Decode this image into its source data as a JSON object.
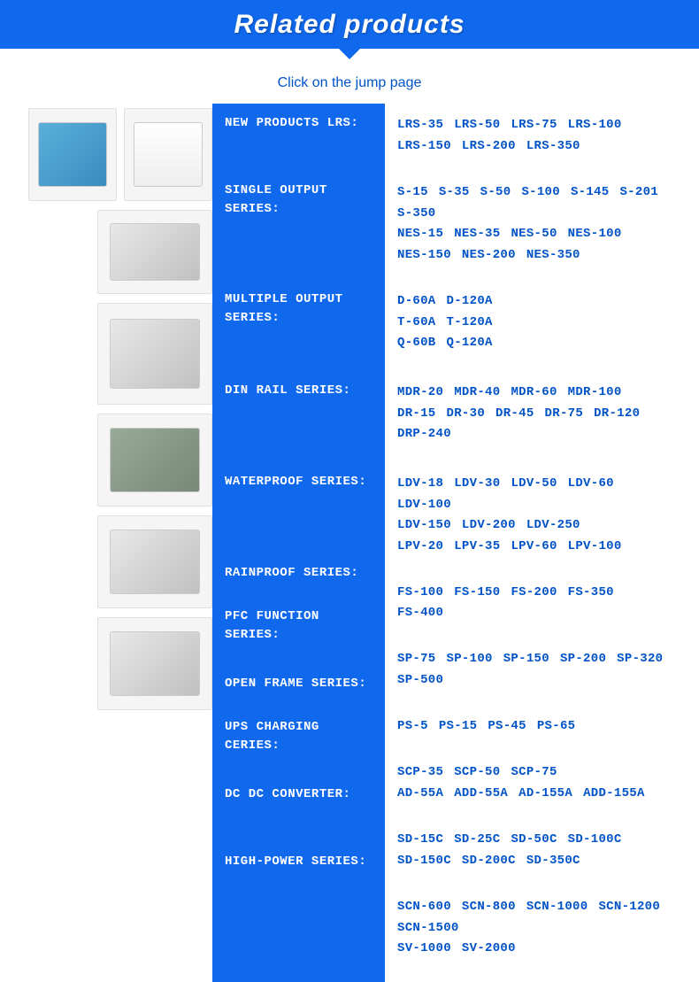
{
  "header": {
    "title": "Related products"
  },
  "subtitle": "Click on the jump page",
  "colors": {
    "primary": "#1068ed",
    "link": "#0052c7",
    "white": "#ffffff",
    "bg": "#ffffff"
  },
  "typography": {
    "title_size": 30,
    "subtitle_size": 16,
    "category_font": "Courier New",
    "category_size": 14,
    "link_size": 14
  },
  "categories": [
    {
      "id": "lrs",
      "label": "NEW PRODUCTS LRS:",
      "height_class": "cat-h-sm",
      "products": [
        [
          "LRS-35",
          "LRS-50",
          "LRS-75",
          "LRS-100"
        ],
        [
          "LRS-150",
          "LRS-200",
          "LRS-350"
        ]
      ]
    },
    {
      "id": "single",
      "label": "SINGLE OUTPUT SERIES:",
      "height_class": "cat-h-lg",
      "products": [
        [
          "S-15",
          "S-35",
          "S-50",
          "S-100",
          "S-145",
          "S-201"
        ],
        [
          "S-350"
        ],
        [
          "NES-15",
          "NES-35",
          "NES-50",
          "NES-100"
        ],
        [
          "NES-150",
          "NES-200",
          "NES-350"
        ]
      ]
    },
    {
      "id": "multiple",
      "label": "MULTIPLE OUTPUT SERIES:",
      "height_class": "cat-h-md",
      "products": [
        [
          "D-60A",
          "D-120A"
        ],
        [
          "T-60A",
          "T-120A"
        ],
        [
          "Q-60B",
          "Q-120A"
        ]
      ]
    },
    {
      "id": "dinrail",
      "label": "DIN RAIL SERIES:",
      "height_class": "cat-h-md",
      "products": [
        [
          "MDR-20",
          "MDR-40",
          "MDR-60",
          "MDR-100"
        ],
        [
          "DR-15",
          "DR-30",
          "DR-45",
          "DR-75",
          "DR-120"
        ],
        [
          "DRP-240"
        ]
      ]
    },
    {
      "id": "waterproof",
      "label": "WATERPROOF SERIES:",
      "height_class": "cat-h-md",
      "products": [
        [
          "LDV-18",
          "LDV-30",
          "LDV-50",
          "LDV-60",
          "LDV-100"
        ],
        [
          "LDV-150",
          "LDV-200",
          "LDV-250"
        ],
        [
          "LPV-20",
          "LPV-35",
          "LPV-60",
          "LPV-100"
        ]
      ]
    },
    {
      "id": "rainproof",
      "label": "RAINPROOF SERIES:",
      "height_class": "",
      "products": [
        [
          "FS-100",
          "FS-150",
          "FS-200",
          "FS-350",
          "FS-400"
        ]
      ]
    },
    {
      "id": "pfc",
      "label": "PFC FUNCTION SERIES:",
      "height_class": "cat-h-sm",
      "products": [
        [
          "SP-75",
          "SP-100",
          "SP-150",
          "SP-200",
          "SP-320"
        ],
        [
          "SP-500"
        ]
      ]
    },
    {
      "id": "openframe",
      "label": "OPEN FRAME SERIES:",
      "height_class": "",
      "products": [
        [
          "PS-5",
          "PS-15",
          "PS-45",
          "PS-65"
        ]
      ]
    },
    {
      "id": "ups",
      "label": "UPS CHARGING CERIES:",
      "height_class": "cat-h-sm",
      "products": [
        [
          "SCP-35",
          "SCP-50",
          "SCP-75"
        ],
        [
          "AD-55A",
          "ADD-55A",
          "AD-155A",
          "ADD-155A"
        ]
      ]
    },
    {
      "id": "dcdc",
      "label": "DC DC CONVERTER:",
      "height_class": "cat-h-sm",
      "products": [
        [
          "SD-15C",
          "SD-25C",
          "SD-50C",
          "SD-100C"
        ],
        [
          "SD-150C",
          "SD-200C",
          "SD-350C"
        ]
      ]
    },
    {
      "id": "highpower",
      "label": "HIGH-POWER SERIES:",
      "height_class": "cat-h-md",
      "products": [
        [
          "SCN-600",
          "SCN-800",
          "SCN-1000",
          "SCN-1200"
        ],
        [
          "SCN-1500"
        ],
        [
          "SV-1000",
          "SV-2000"
        ]
      ]
    }
  ],
  "thumbnails": [
    {
      "type": "row",
      "items": [
        {
          "style": "box-blue"
        },
        {
          "style": "box-white"
        }
      ]
    },
    {
      "type": "single",
      "size": "img-lg",
      "style": "box-silver"
    },
    {
      "type": "single",
      "size": "img-tall",
      "style": "box-silver"
    },
    {
      "type": "single",
      "size": "img-med",
      "style": "box-open"
    },
    {
      "type": "single",
      "size": "img-med",
      "style": "box-silver"
    },
    {
      "type": "single",
      "size": "img-med",
      "style": "box-silver"
    }
  ]
}
